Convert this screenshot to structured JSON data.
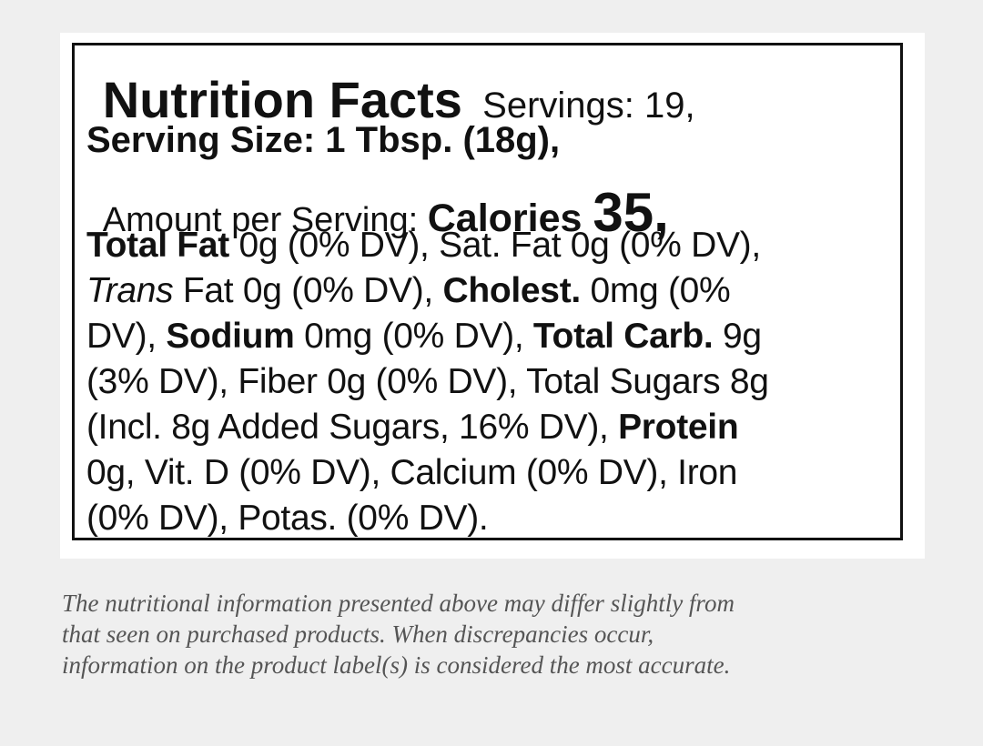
{
  "label": {
    "title": "Nutrition Facts",
    "servings": "Servings: 19,",
    "serving_size": "Serving Size: 1 Tbsp. (18g),",
    "amount_per_serving": "Amount per Serving:",
    "calories_label": "Calories",
    "calories": "35,",
    "lines": [
      [
        "Total Fat",
        " 0g (0% DV), Sat. Fat 0g (0% DV),"
      ],
      [
        "Trans",
        " Fat 0g (0% DV), ",
        "Cholest.",
        " 0mg (0%"
      ],
      [
        "DV), ",
        "Sodium",
        " 0mg (0% DV), ",
        "Total Carb.",
        " 9g"
      ],
      [
        "(3% DV), Fiber 0g (0% DV), Total Sugars 8g"
      ],
      [
        "(Incl. 8g Added Sugars, 16% DV), ",
        "Protein"
      ],
      [
        "0g, Vit. D (0% DV), Calcium (0% DV), Iron"
      ],
      [
        "(0% DV), Potas. (0% DV)."
      ]
    ]
  },
  "disclaimer": [
    "The nutritional information presented above may differ slightly from",
    "that seen on purchased products. When discrepancies occur,",
    "information on the product label(s) is considered the most accurate."
  ]
}
